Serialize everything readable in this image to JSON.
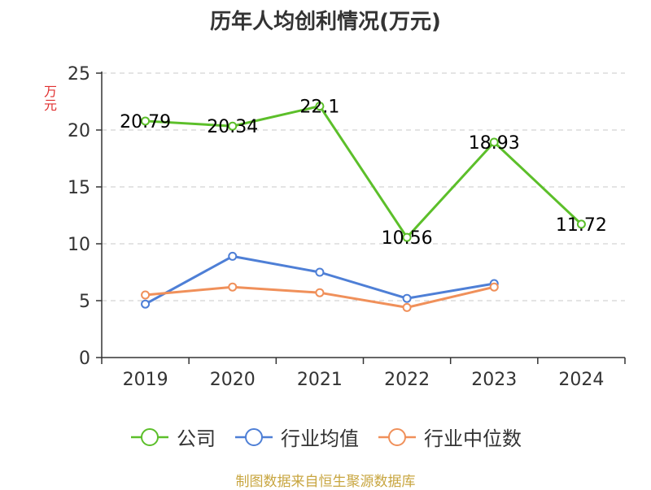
{
  "chart_data": {
    "type": "line",
    "title": "历年人均创利情况(万元)",
    "ylabel": "万元",
    "categories": [
      "2019",
      "2020",
      "2021",
      "2022",
      "2023",
      "2024"
    ],
    "ylim": [
      0,
      25
    ],
    "yticks": [
      0,
      5,
      10,
      15,
      20,
      25
    ],
    "grid": true,
    "legend_position": "bottom",
    "series": [
      {
        "name": "公司",
        "color": "#5cbf2a",
        "values": [
          20.79,
          20.34,
          22.1,
          10.56,
          18.93,
          11.72
        ],
        "labels": [
          "20.79",
          "20.34",
          "22.1",
          "10.56",
          "18.93",
          "11.72"
        ]
      },
      {
        "name": "行业均值",
        "color": "#4e7fd6",
        "values": [
          4.7,
          8.9,
          7.5,
          5.2,
          6.5,
          null
        ]
      },
      {
        "name": "行业中位数",
        "color": "#f0905a",
        "values": [
          5.5,
          6.2,
          5.7,
          4.4,
          6.2,
          null
        ]
      }
    ]
  },
  "footer": "制图数据来自恒生聚源数据库"
}
